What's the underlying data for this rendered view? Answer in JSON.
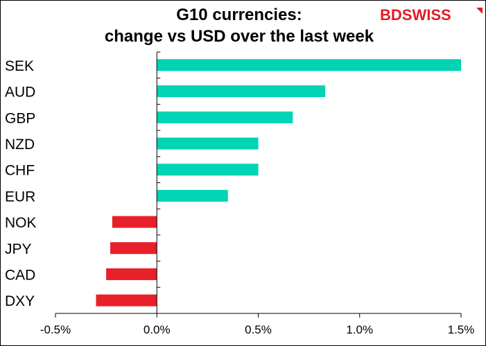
{
  "chart_data": {
    "type": "bar",
    "orientation": "horizontal",
    "title": "G10 currencies:\nchange vs USD over the last week",
    "title_lines": [
      "G10 currencies:",
      "change vs USD over the last week"
    ],
    "categories": [
      "SEK",
      "AUD",
      "GBP",
      "NZD",
      "CHF",
      "EUR",
      "NOK",
      "JPY",
      "CAD",
      "DXY"
    ],
    "values": [
      1.5,
      0.83,
      0.67,
      0.5,
      0.5,
      0.35,
      -0.22,
      -0.23,
      -0.25,
      -0.3
    ],
    "unit": "%",
    "xlim": [
      -0.5,
      1.5
    ],
    "xticks": [
      -0.5,
      0.0,
      0.5,
      1.0,
      1.5
    ],
    "xtick_labels": [
      "-0.5%",
      "0.0%",
      "0.5%",
      "1.0%",
      "1.5%"
    ],
    "xlabel": "",
    "ylabel": "",
    "grid": false,
    "colors": {
      "positive": "#00d4b4",
      "negative": "#e8202a"
    }
  },
  "brand": {
    "name": "BDSWISS",
    "color": "#e31b23",
    "icon": "arrow-up-right-icon"
  }
}
